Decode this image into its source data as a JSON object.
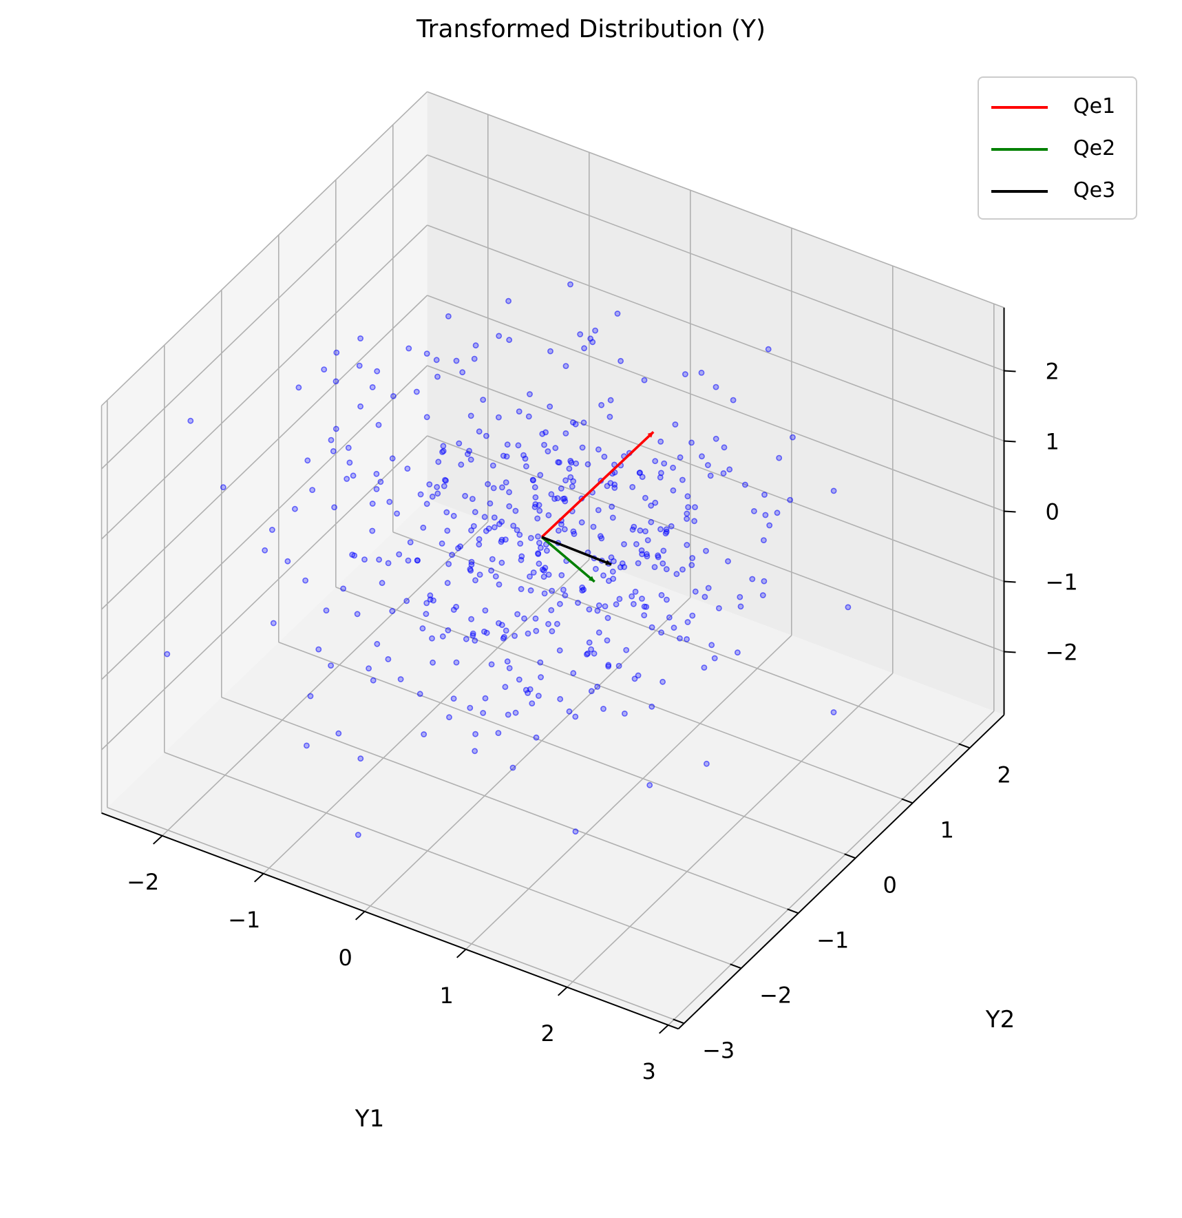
{
  "chart_data": {
    "type": "scatter",
    "projection": "3d",
    "title": "Transformed Distribution (Y)",
    "xlabel": "Y1",
    "ylabel": "Y2",
    "zlabel": "",
    "x_ticks": [
      "−2",
      "−1",
      "0",
      "1",
      "2",
      "3"
    ],
    "y_ticks": [
      "−3",
      "−2",
      "−1",
      "0",
      "1",
      "2"
    ],
    "z_ticks": [
      "−2",
      "−1",
      "0",
      "1",
      "2"
    ],
    "xlim": [
      -2.6,
      3.1
    ],
    "ylim": [
      -3.1,
      2.6
    ],
    "zlim": [
      -2.9,
      2.9
    ],
    "grid": true,
    "legend_position": "top-right",
    "points_color": "#0000ff",
    "series": [
      {
        "name": "Y",
        "count": 500,
        "distribution": "approximately standard normal in Y1, Y2, Y3",
        "mean": [
          0,
          0,
          0
        ]
      }
    ],
    "vectors": [
      {
        "name": "Qe1",
        "color": "#ff0000",
        "origin": [
          0,
          0,
          0
        ]
      },
      {
        "name": "Qe2",
        "color": "#008000",
        "origin": [
          0,
          0,
          0
        ]
      },
      {
        "name": "Qe3",
        "color": "#000000",
        "origin": [
          0,
          0,
          0
        ]
      }
    ]
  }
}
